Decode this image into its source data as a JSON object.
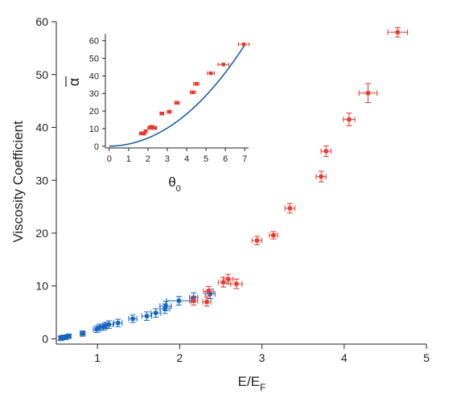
{
  "chart_data": [
    {
      "type": "scatter",
      "role": "main",
      "xlabel": "E/E",
      "xlabel_sub": "F",
      "ylabel": "Viscosity Coefficient",
      "xlim": [
        0.5,
        5
      ],
      "ylim": [
        -1,
        60
      ],
      "x_ticks": [
        1,
        2,
        3,
        4,
        5
      ],
      "y_ticks": [
        0,
        10,
        20,
        30,
        40,
        50,
        60
      ],
      "grid": false,
      "series": [
        {
          "color": "#1565c0",
          "points": [
            {
              "x": 0.55,
              "y": 0.1,
              "xerr": 0.02,
              "yerr": 0.4
            },
            {
              "x": 0.57,
              "y": 0.2,
              "xerr": 0.02,
              "yerr": 0.4
            },
            {
              "x": 0.59,
              "y": 0.3,
              "xerr": 0.02,
              "yerr": 0.4
            },
            {
              "x": 0.62,
              "y": 0.3,
              "xerr": 0.02,
              "yerr": 0.4
            },
            {
              "x": 0.65,
              "y": 0.5,
              "xerr": 0.03,
              "yerr": 0.4
            },
            {
              "x": 0.82,
              "y": 1.0,
              "xerr": 0.03,
              "yerr": 0.5
            },
            {
              "x": 0.99,
              "y": 1.8,
              "xerr": 0.04,
              "yerr": 0.6
            },
            {
              "x": 1.03,
              "y": 2.2,
              "xerr": 0.04,
              "yerr": 0.6
            },
            {
              "x": 1.07,
              "y": 2.2,
              "xerr": 0.04,
              "yerr": 0.6
            },
            {
              "x": 1.1,
              "y": 2.5,
              "xerr": 0.04,
              "yerr": 0.6
            },
            {
              "x": 1.14,
              "y": 2.7,
              "xerr": 0.05,
              "yerr": 0.7
            },
            {
              "x": 1.25,
              "y": 3.0,
              "xerr": 0.05,
              "yerr": 0.7
            },
            {
              "x": 1.43,
              "y": 3.8,
              "xerr": 0.05,
              "yerr": 0.7
            },
            {
              "x": 1.6,
              "y": 4.3,
              "xerr": 0.06,
              "yerr": 0.8
            },
            {
              "x": 1.71,
              "y": 4.9,
              "xerr": 0.06,
              "yerr": 0.8
            },
            {
              "x": 1.82,
              "y": 5.7,
              "xerr": 0.06,
              "yerr": 0.9
            },
            {
              "x": 1.83,
              "y": 6.2,
              "xerr": 0.07,
              "yerr": 0.9
            },
            {
              "x": 1.99,
              "y": 7.2,
              "xerr": 0.15,
              "yerr": 0.8
            },
            {
              "x": 2.17,
              "y": 7.8,
              "xerr": 0.05,
              "yerr": 0.9
            },
            {
              "x": 2.37,
              "y": 8.5,
              "xerr": 0.06,
              "yerr": 0.9
            }
          ]
        },
        {
          "color": "#e8392b",
          "points": [
            {
              "x": 2.17,
              "y": 7.2,
              "xerr": 0.05,
              "yerr": 0.8
            },
            {
              "x": 2.33,
              "y": 7.0,
              "xerr": 0.05,
              "yerr": 0.8
            },
            {
              "x": 2.35,
              "y": 9.0,
              "xerr": 0.06,
              "yerr": 0.9
            },
            {
              "x": 2.53,
              "y": 10.7,
              "xerr": 0.06,
              "yerr": 0.9
            },
            {
              "x": 2.59,
              "y": 11.3,
              "xerr": 0.06,
              "yerr": 0.9
            },
            {
              "x": 2.69,
              "y": 10.4,
              "xerr": 0.07,
              "yerr": 0.9
            },
            {
              "x": 2.94,
              "y": 18.6,
              "xerr": 0.06,
              "yerr": 0.8
            },
            {
              "x": 3.14,
              "y": 19.6,
              "xerr": 0.05,
              "yerr": 0.7
            },
            {
              "x": 3.34,
              "y": 24.7,
              "xerr": 0.06,
              "yerr": 0.9
            },
            {
              "x": 3.72,
              "y": 30.7,
              "xerr": 0.06,
              "yerr": 1.0
            },
            {
              "x": 3.78,
              "y": 35.5,
              "xerr": 0.06,
              "yerr": 1.0
            },
            {
              "x": 4.06,
              "y": 41.5,
              "xerr": 0.07,
              "yerr": 1.2
            },
            {
              "x": 4.29,
              "y": 46.5,
              "xerr": 0.11,
              "yerr": 1.8
            },
            {
              "x": 4.65,
              "y": 58.0,
              "xerr": 0.12,
              "yerr": 0.9
            }
          ]
        }
      ]
    },
    {
      "type": "scatter",
      "role": "inset",
      "xlabel": "θ",
      "xlabel_sub": "0",
      "ylabel": "α",
      "ylabel_bar": true,
      "xlim": [
        -0.2,
        7.2
      ],
      "ylim": [
        -1,
        64
      ],
      "x_ticks": [
        0,
        1,
        2,
        3,
        4,
        5,
        6,
        7
      ],
      "y_ticks": [
        0,
        10,
        20,
        30,
        40,
        50,
        60
      ],
      "grid": false,
      "curve": {
        "color": "#1f5fa8",
        "formula": "y = 0.015*x^3 + 1.05*x^2 + 0.15*x"
      },
      "series": [
        {
          "color": "#e8392b",
          "points": [
            {
              "x": 1.65,
              "y": 7.3,
              "xerr": 0.08
            },
            {
              "x": 1.8,
              "y": 7.2,
              "xerr": 0.08
            },
            {
              "x": 1.88,
              "y": 8.5,
              "xerr": 0.08
            },
            {
              "x": 2.1,
              "y": 10.5,
              "xerr": 0.1
            },
            {
              "x": 2.2,
              "y": 11.0,
              "xerr": 0.1
            },
            {
              "x": 2.35,
              "y": 10.4,
              "xerr": 0.1
            },
            {
              "x": 2.72,
              "y": 18.6,
              "xerr": 0.1
            },
            {
              "x": 3.1,
              "y": 19.6,
              "xerr": 0.1
            },
            {
              "x": 3.5,
              "y": 24.7,
              "xerr": 0.12
            },
            {
              "x": 4.32,
              "y": 30.7,
              "xerr": 0.14
            },
            {
              "x": 4.5,
              "y": 35.5,
              "xerr": 0.14
            },
            {
              "x": 5.25,
              "y": 41.5,
              "xerr": 0.18
            },
            {
              "x": 5.9,
              "y": 46.5,
              "xerr": 0.28
            },
            {
              "x": 6.95,
              "y": 58.0,
              "xerr": 0.28
            }
          ]
        }
      ]
    }
  ]
}
